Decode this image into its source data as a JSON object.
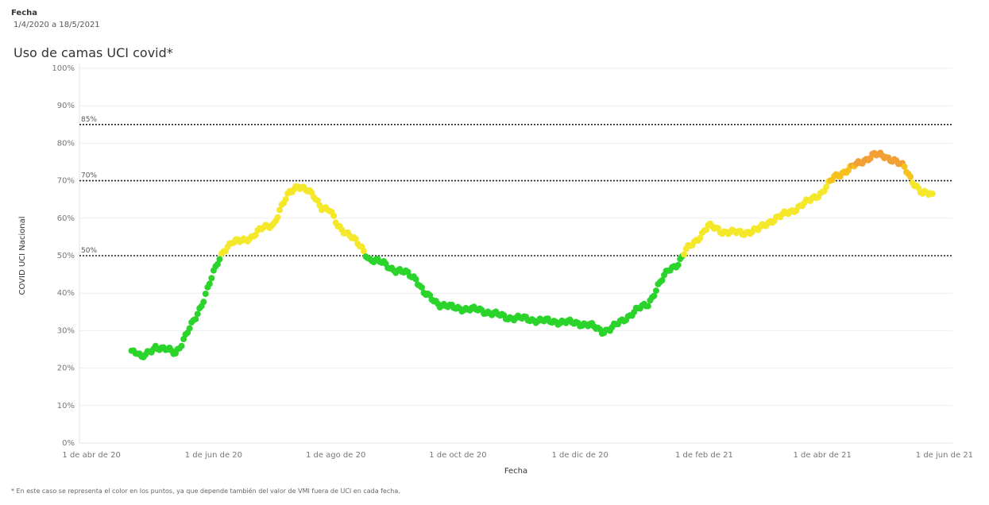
{
  "filter": {
    "label": "Fecha",
    "value": "1/4/2020 a 18/5/2021"
  },
  "title": "Uso de camas UCI covid*",
  "footnote": "* En este caso se representa el color en los puntos, ya que depende también del valor de VMI fuera de UCI en cada fecha.",
  "colors": {
    "green": "#2bd42b",
    "yellow": "#f5e82a",
    "amber": "#f7c21e",
    "orange": "#f2a033"
  },
  "chart_data": {
    "type": "scatter",
    "xlabel": "Fecha",
    "ylabel": "COVID UCI Nacional",
    "x_range": [
      "2020-03-26",
      "2021-06-05"
    ],
    "ylim": [
      0,
      100
    ],
    "y_ticks": [
      "0%",
      "10%",
      "20%",
      "30%",
      "40%",
      "50%",
      "60%",
      "70%",
      "80%",
      "90%",
      "100%"
    ],
    "x_ticks": [
      {
        "date": "2020-04-01",
        "label": "1 de abr de 20"
      },
      {
        "date": "2020-06-01",
        "label": "1 de jun de 20"
      },
      {
        "date": "2020-08-01",
        "label": "1 de ago de 20"
      },
      {
        "date": "2020-10-01",
        "label": "1 de oct de 20"
      },
      {
        "date": "2020-12-01",
        "label": "1 de dic de 20"
      },
      {
        "date": "2021-02-01",
        "label": "1 de feb de 21"
      },
      {
        "date": "2021-04-01",
        "label": "1 de abr de 21"
      },
      {
        "date": "2021-06-01",
        "label": "1 de jun de 21"
      }
    ],
    "reference_lines": [
      {
        "value": 85,
        "label": "85%"
      },
      {
        "value": 70,
        "label": "70%"
      },
      {
        "value": 50,
        "label": "50%"
      }
    ],
    "grid": true,
    "series_keypoints": [
      [
        "2020-04-21",
        24.8
      ],
      [
        "2020-04-24",
        24
      ],
      [
        "2020-04-26",
        22.5
      ],
      [
        "2020-04-30",
        24.5
      ],
      [
        "2020-05-03",
        25.8
      ],
      [
        "2020-05-06",
        25
      ],
      [
        "2020-05-10",
        24.8
      ],
      [
        "2020-05-13",
        24.2
      ],
      [
        "2020-05-16",
        26.5
      ],
      [
        "2020-05-19",
        29.5
      ],
      [
        "2020-05-23",
        33.5
      ],
      [
        "2020-05-26",
        37
      ],
      [
        "2020-05-31",
        44
      ],
      [
        "2020-06-03",
        48
      ],
      [
        "2020-06-06",
        51.5
      ],
      [
        "2020-06-10",
        53.5
      ],
      [
        "2020-06-14",
        53.8
      ],
      [
        "2020-06-20",
        55
      ],
      [
        "2020-06-26",
        57.5
      ],
      [
        "2020-07-01",
        58.5
      ],
      [
        "2020-07-05",
        63
      ],
      [
        "2020-07-09",
        67
      ],
      [
        "2020-07-13",
        68.8
      ],
      [
        "2020-07-17",
        67.5
      ],
      [
        "2020-07-21",
        66
      ],
      [
        "2020-07-25",
        63
      ],
      [
        "2020-07-29",
        62
      ],
      [
        "2020-08-02",
        58
      ],
      [
        "2020-08-08",
        55.5
      ],
      [
        "2020-08-14",
        52
      ],
      [
        "2020-08-18",
        49
      ],
      [
        "2020-08-25",
        48
      ],
      [
        "2020-08-31",
        46
      ],
      [
        "2020-09-06",
        45.3
      ],
      [
        "2020-09-10",
        44
      ],
      [
        "2020-09-14",
        40
      ],
      [
        "2020-09-18",
        38.5
      ],
      [
        "2020-09-22",
        37
      ],
      [
        "2020-09-28",
        36.2
      ],
      [
        "2020-10-05",
        35.8
      ],
      [
        "2020-10-12",
        35.5
      ],
      [
        "2020-10-19",
        34.5
      ],
      [
        "2020-10-26",
        33.5
      ],
      [
        "2020-11-02",
        33.3
      ],
      [
        "2020-11-09",
        32.8
      ],
      [
        "2020-11-16",
        32.5
      ],
      [
        "2020-11-23",
        32.3
      ],
      [
        "2020-11-30",
        32
      ],
      [
        "2020-12-06",
        31.5
      ],
      [
        "2020-12-12",
        29.8
      ],
      [
        "2020-12-16",
        30.5
      ],
      [
        "2020-12-22",
        32.5
      ],
      [
        "2020-12-29",
        35.5
      ],
      [
        "2021-01-04",
        37
      ],
      [
        "2021-01-09",
        42
      ],
      [
        "2021-01-14",
        46
      ],
      [
        "2021-01-19",
        48
      ],
      [
        "2021-01-23",
        51.5
      ],
      [
        "2021-01-28",
        54
      ],
      [
        "2021-02-03",
        58
      ],
      [
        "2021-02-10",
        56.5
      ],
      [
        "2021-02-20",
        56
      ],
      [
        "2021-02-28",
        57
      ],
      [
        "2021-03-07",
        59.5
      ],
      [
        "2021-03-17",
        62
      ],
      [
        "2021-03-25",
        64.5
      ],
      [
        "2021-04-01",
        67
      ],
      [
        "2021-04-07",
        71
      ],
      [
        "2021-04-14",
        73
      ],
      [
        "2021-04-22",
        75.5
      ],
      [
        "2021-04-27",
        77
      ],
      [
        "2021-05-02",
        76.5
      ],
      [
        "2021-05-07",
        75.5
      ],
      [
        "2021-05-12",
        73.5
      ],
      [
        "2021-05-16",
        70
      ],
      [
        "2021-05-21",
        66.5
      ],
      [
        "2021-05-26",
        66.5
      ]
    ],
    "color_rule": [
      {
        "below": 50,
        "color": "green"
      },
      {
        "below": 70,
        "color": "yellow"
      },
      {
        "below": 74,
        "color": "amber"
      },
      {
        "below": 101,
        "color": "orange"
      }
    ]
  }
}
